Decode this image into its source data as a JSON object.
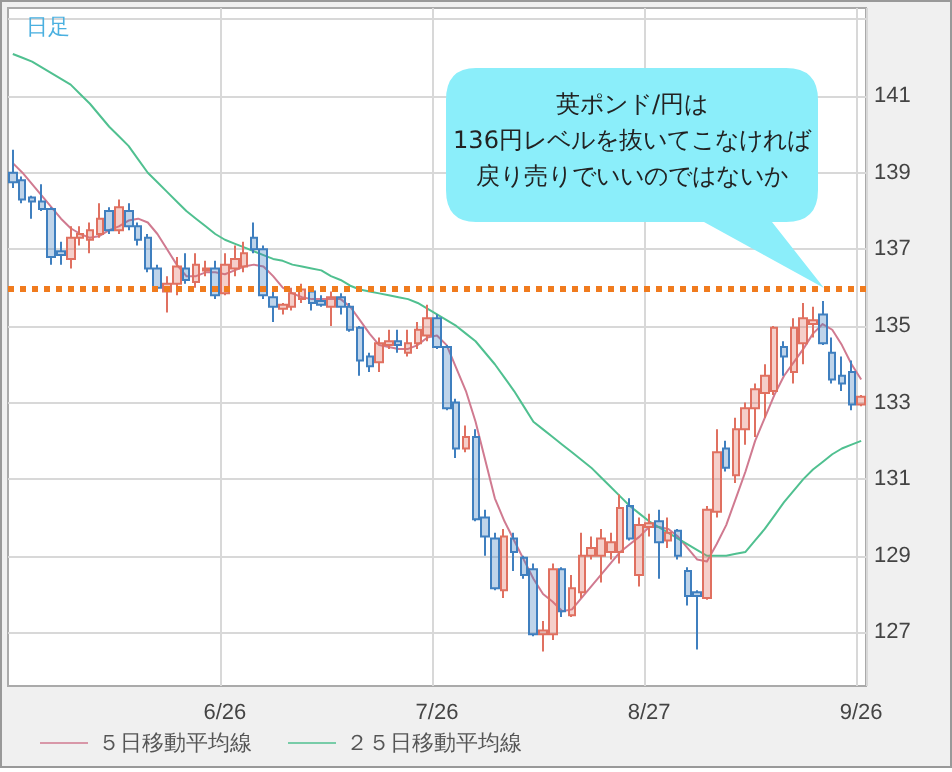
{
  "chart_data": {
    "type": "candlestick",
    "categories": [
      null,
      null,
      null,
      null,
      null,
      null,
      null,
      null,
      null,
      null,
      null,
      null,
      null,
      null,
      null,
      null,
      null,
      null,
      null,
      null,
      null,
      null,
      "6/26",
      null,
      null,
      null,
      null,
      null,
      null,
      null,
      null,
      null,
      null,
      null,
      null,
      null,
      null,
      null,
      null,
      null,
      null,
      null,
      null,
      null,
      "7/26",
      null,
      null,
      null,
      null,
      null,
      null,
      null,
      null,
      null,
      null,
      null,
      null,
      null,
      null,
      null,
      null,
      null,
      null,
      null,
      null,
      null,
      "8/27",
      null,
      null,
      null,
      null,
      null,
      null,
      null,
      null,
      null,
      null,
      null,
      null,
      null,
      null,
      null,
      null,
      null,
      null,
      null,
      null,
      null,
      "9/26"
    ],
    "series": [
      {
        "ohlc": [
          [
            139.0,
            139.6,
            138.6,
            138.75
          ],
          [
            138.8,
            138.9,
            138.2,
            138.3
          ],
          [
            138.35,
            138.4,
            137.8,
            138.25
          ],
          [
            138.25,
            138.7,
            138.0,
            138.05
          ],
          [
            138.05,
            138.1,
            136.6,
            136.8
          ],
          [
            136.95,
            137.2,
            136.6,
            136.85
          ],
          [
            136.75,
            137.6,
            136.5,
            137.3
          ],
          [
            137.3,
            137.6,
            137.1,
            137.4
          ],
          [
            137.25,
            137.7,
            136.9,
            137.5
          ],
          [
            137.4,
            138.2,
            137.3,
            137.8
          ],
          [
            138.0,
            138.1,
            137.4,
            137.5
          ],
          [
            137.5,
            138.3,
            137.4,
            138.1
          ],
          [
            138.0,
            138.2,
            137.5,
            137.6
          ],
          [
            137.6,
            137.7,
            137.1,
            137.25
          ],
          [
            137.3,
            137.4,
            136.4,
            136.5
          ],
          [
            136.5,
            136.6,
            135.9,
            136.0
          ],
          [
            135.9,
            136.3,
            135.35,
            136.1
          ],
          [
            136.1,
            136.8,
            135.8,
            136.55
          ],
          [
            136.5,
            136.9,
            136.1,
            136.2
          ],
          [
            136.15,
            136.9,
            136.0,
            136.6
          ],
          [
            136.45,
            136.7,
            136.3,
            136.5
          ],
          [
            136.5,
            136.7,
            135.7,
            135.8
          ],
          [
            135.85,
            136.9,
            135.8,
            136.6
          ],
          [
            136.5,
            137.1,
            136.3,
            136.75
          ],
          [
            136.55,
            137.2,
            136.4,
            136.9
          ],
          [
            137.3,
            137.7,
            136.9,
            137.0
          ],
          [
            137.0,
            137.1,
            135.7,
            135.8
          ],
          [
            135.75,
            135.9,
            135.1,
            135.5
          ],
          [
            135.45,
            135.6,
            135.3,
            135.55
          ],
          [
            135.5,
            136.0,
            135.4,
            135.85
          ],
          [
            135.7,
            136.1,
            135.6,
            135.95
          ],
          [
            135.9,
            136.0,
            135.4,
            135.6
          ],
          [
            135.65,
            135.8,
            135.5,
            135.55
          ],
          [
            135.5,
            135.9,
            135.0,
            135.75
          ],
          [
            135.75,
            135.85,
            135.3,
            135.5
          ],
          [
            135.5,
            135.6,
            134.85,
            134.9
          ],
          [
            134.95,
            135.0,
            133.7,
            134.1
          ],
          [
            134.2,
            134.3,
            133.8,
            133.95
          ],
          [
            134.05,
            134.7,
            133.8,
            134.55
          ],
          [
            134.5,
            134.9,
            134.4,
            134.6
          ],
          [
            134.6,
            134.9,
            134.3,
            134.5
          ],
          [
            134.3,
            134.9,
            134.2,
            134.55
          ],
          [
            134.55,
            135.1,
            134.4,
            134.9
          ],
          [
            134.75,
            135.55,
            134.6,
            135.2
          ],
          [
            135.2,
            135.3,
            134.4,
            134.45
          ],
          [
            134.45,
            134.5,
            132.8,
            132.85
          ],
          [
            133.0,
            133.1,
            131.55,
            131.8
          ],
          [
            131.8,
            132.4,
            131.7,
            132.1
          ],
          [
            132.1,
            132.3,
            129.9,
            129.95
          ],
          [
            130.0,
            130.2,
            129.0,
            129.5
          ],
          [
            129.45,
            129.6,
            128.1,
            128.15
          ],
          [
            128.1,
            129.7,
            127.9,
            129.5
          ],
          [
            129.45,
            129.6,
            128.6,
            129.1
          ],
          [
            128.95,
            129.0,
            128.4,
            128.5
          ],
          [
            128.65,
            128.8,
            126.9,
            126.95
          ],
          [
            126.95,
            127.3,
            126.5,
            127.05
          ],
          [
            126.95,
            128.8,
            126.8,
            128.65
          ],
          [
            128.65,
            128.7,
            127.4,
            127.55
          ],
          [
            127.45,
            128.5,
            127.4,
            128.15
          ],
          [
            128.05,
            129.6,
            127.9,
            129.0
          ],
          [
            129.0,
            129.5,
            128.9,
            129.2
          ],
          [
            129.0,
            129.7,
            128.3,
            129.45
          ],
          [
            129.1,
            129.6,
            128.9,
            129.35
          ],
          [
            129.1,
            130.6,
            128.8,
            130.25
          ],
          [
            130.3,
            130.5,
            129.4,
            129.45
          ],
          [
            128.5,
            130.0,
            128.2,
            129.8
          ],
          [
            129.75,
            130.1,
            129.5,
            129.85
          ],
          [
            129.9,
            130.2,
            128.4,
            129.35
          ],
          [
            129.4,
            130.0,
            129.2,
            129.6
          ],
          [
            129.65,
            129.7,
            128.9,
            129.0
          ],
          [
            128.6,
            128.7,
            127.7,
            127.95
          ],
          [
            128.05,
            128.1,
            126.55,
            127.95
          ],
          [
            127.9,
            130.3,
            127.85,
            130.2
          ],
          [
            130.15,
            132.3,
            130.0,
            131.7
          ],
          [
            131.8,
            132.0,
            131.2,
            131.3
          ],
          [
            131.1,
            132.6,
            130.9,
            132.3
          ],
          [
            132.3,
            133.0,
            131.9,
            132.85
          ],
          [
            132.85,
            133.5,
            132.1,
            133.35
          ],
          [
            133.25,
            134.0,
            132.6,
            133.7
          ],
          [
            133.3,
            135.0,
            133.2,
            134.95
          ],
          [
            134.45,
            134.6,
            133.7,
            134.2
          ],
          [
            133.8,
            135.2,
            133.5,
            134.95
          ],
          [
            134.55,
            135.6,
            134.0,
            135.2
          ],
          [
            135.05,
            135.5,
            134.7,
            135.15
          ],
          [
            135.3,
            135.65,
            134.5,
            134.55
          ],
          [
            134.3,
            134.7,
            133.5,
            133.6
          ],
          [
            133.7,
            134.2,
            133.3,
            133.5
          ],
          [
            133.8,
            134.1,
            132.8,
            132.95
          ],
          [
            132.95,
            133.2,
            132.9,
            133.15
          ]
        ],
        "colors": [
          "#3f7fbf",
          "#3f7fbf",
          "#3f7fbf",
          "#3f7fbf",
          "#3f7fbf",
          "#3f7fbf",
          "#e07060",
          "#e07060",
          "#e07060",
          "#e07060",
          "#3f7fbf",
          "#e07060",
          "#3f7fbf",
          "#3f7fbf",
          "#3f7fbf",
          "#3f7fbf",
          "#e07060",
          "#e07060",
          "#3f7fbf",
          "#e07060",
          "#e07060",
          "#3f7fbf",
          "#e07060",
          "#e07060",
          "#e07060",
          "#3f7fbf",
          "#3f7fbf",
          "#3f7fbf",
          "#e07060",
          "#e07060",
          "#e07060",
          "#3f7fbf",
          "#3f7fbf",
          "#e07060",
          "#3f7fbf",
          "#3f7fbf",
          "#3f7fbf",
          "#3f7fbf",
          "#e07060",
          "#e07060",
          "#3f7fbf",
          "#e07060",
          "#e07060",
          "#e07060",
          "#3f7fbf",
          "#3f7fbf",
          "#3f7fbf",
          "#e07060",
          "#3f7fbf",
          "#3f7fbf",
          "#3f7fbf",
          "#e07060",
          "#3f7fbf",
          "#3f7fbf",
          "#3f7fbf",
          "#e07060",
          "#e07060",
          "#3f7fbf",
          "#e07060",
          "#e07060",
          "#e07060",
          "#e07060",
          "#e07060",
          "#e07060",
          "#3f7fbf",
          "#e07060",
          "#e07060",
          "#3f7fbf",
          "#e07060",
          "#3f7fbf",
          "#3f7fbf",
          "#3f7fbf",
          "#e07060",
          "#e07060",
          "#3f7fbf",
          "#e07060",
          "#e07060",
          "#e07060",
          "#e07060",
          "#e07060",
          "#3f7fbf",
          "#e07060",
          "#e07060",
          "#e07060",
          "#3f7fbf",
          "#3f7fbf",
          "#3f7fbf",
          "#3f7fbf",
          "#e07060"
        ]
      },
      {
        "type": "line",
        "name": "５日移動平均線",
        "color": "#d07a90",
        "values": [
          139.25,
          139.0,
          138.7,
          138.4,
          138.1,
          137.8,
          137.55,
          137.4,
          137.3,
          137.35,
          137.5,
          137.6,
          137.75,
          137.8,
          137.7,
          137.4,
          137.0,
          136.6,
          136.3,
          136.3,
          136.4,
          136.4,
          136.35,
          136.45,
          136.55,
          136.6,
          136.55,
          136.3,
          136.0,
          135.85,
          135.75,
          135.7,
          135.7,
          135.7,
          135.7,
          135.5,
          135.15,
          134.8,
          134.5,
          134.45,
          134.4,
          134.4,
          134.5,
          134.7,
          134.75,
          134.5,
          133.9,
          133.3,
          132.5,
          131.5,
          130.5,
          129.9,
          129.4,
          128.9,
          128.4,
          128.0,
          127.8,
          127.55,
          127.6,
          127.9,
          128.2,
          128.5,
          128.8,
          129.1,
          129.3,
          129.5,
          129.75,
          129.75,
          129.7,
          129.5,
          129.2,
          128.9,
          128.85,
          129.3,
          129.8,
          130.5,
          131.2,
          132.0,
          132.6,
          133.2,
          133.7,
          134.05,
          134.4,
          134.8,
          135.05,
          134.9,
          134.5,
          134.0,
          133.6
        ]
      },
      {
        "type": "line",
        "name": "２５日移動平均線",
        "color": "#50c090",
        "values": [
          142.1,
          142.0,
          141.9,
          141.75,
          141.6,
          141.45,
          141.3,
          141.05,
          140.8,
          140.5,
          140.2,
          139.95,
          139.7,
          139.35,
          139.0,
          138.75,
          138.5,
          138.25,
          138.0,
          137.8,
          137.6,
          137.4,
          137.25,
          137.15,
          137.05,
          136.95,
          136.85,
          136.75,
          136.7,
          136.6,
          136.55,
          136.5,
          136.45,
          136.3,
          136.2,
          136.05,
          135.95,
          135.9,
          135.85,
          135.8,
          135.75,
          135.7,
          135.6,
          135.45,
          135.3,
          135.15,
          135.0,
          134.8,
          134.6,
          134.3,
          134.0,
          133.65,
          133.3,
          132.9,
          132.5,
          132.3,
          132.1,
          131.9,
          131.7,
          131.5,
          131.3,
          131.05,
          130.8,
          130.55,
          130.3,
          130.1,
          129.9,
          129.75,
          129.6,
          129.45,
          129.3,
          129.15,
          129.0,
          129.0,
          129.0,
          129.05,
          129.1,
          129.4,
          129.7,
          130.05,
          130.4,
          130.7,
          131.0,
          131.25,
          131.45,
          131.65,
          131.8,
          131.9,
          132.0
        ]
      }
    ],
    "ylim": [
      125.6,
      143.3
    ],
    "yticks": [
      127,
      129,
      131,
      133,
      135,
      137,
      139,
      141,
      {
        "value": 143,
        "label": null
      }
    ],
    "ref_lines": [
      {
        "axis": "y",
        "value": 136,
        "color": "#f07b1e",
        "line_style": "dotted"
      }
    ],
    "annotations": [
      "日足",
      "英ポンド/円は",
      "136円レベルを抜いてこなければ",
      "戻り売りでいいのではないか"
    ],
    "grid": true,
    "legend": "bottom",
    "marker": "none"
  }
}
